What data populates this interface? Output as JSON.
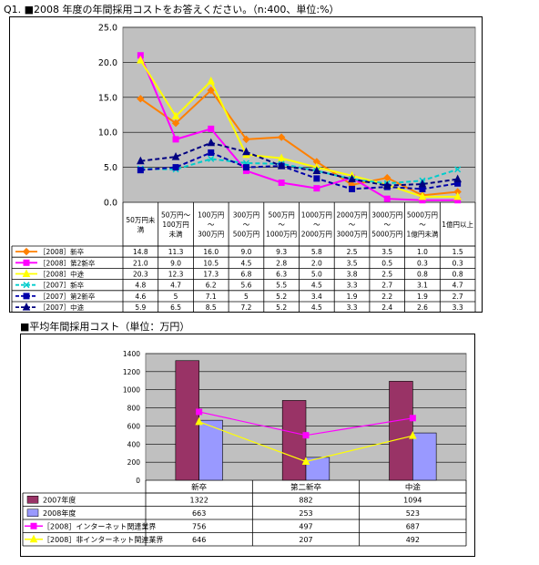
{
  "title1": "Q1. ■2008 年度の年間採用コストをお答えください。（n:400、単位:%）",
  "title2": "■平均年間採用コスト（単位：万円）",
  "chart_data": [
    {
      "type": "line",
      "ylim": [
        0,
        25
      ],
      "yticks": [
        "25.0",
        "20.0",
        "15.0",
        "10.0",
        "5.0",
        "0.0"
      ],
      "categories": [
        [
          "50万円未",
          "満"
        ],
        [
          "50万円～",
          "100万円",
          "未満"
        ],
        [
          "100万円",
          "～",
          "300万円"
        ],
        [
          "300万円",
          "～",
          "500万円"
        ],
        [
          "500万円",
          "～",
          "1000万円"
        ],
        [
          "1000万円",
          "～",
          "2000万円"
        ],
        [
          "2000万円",
          "～",
          "3000万円"
        ],
        [
          "3000万円",
          "～",
          "5000万円"
        ],
        [
          "5000万円",
          "～",
          "1億円未満"
        ],
        [
          "1億円以上"
        ]
      ],
      "series": [
        {
          "name": "［2008］新卒",
          "color": "#ff8000",
          "dash": false,
          "marker": "diamond",
          "labels": [
            "14.8",
            "11.3",
            "16.0",
            "9.0",
            "9.3",
            "5.8",
            "2.5",
            "3.5",
            "1.0",
            "1.5"
          ],
          "values": [
            14.8,
            11.3,
            16.0,
            9.0,
            9.3,
            5.8,
            2.5,
            3.5,
            1.0,
            1.5
          ]
        },
        {
          "name": "［2008］第2新卒",
          "color": "#ff00ff",
          "dash": false,
          "marker": "square",
          "labels": [
            "21.0",
            "9.0",
            "10.5",
            "4.5",
            "2.8",
            "2.0",
            "3.5",
            "0.5",
            "0.3",
            "0.3"
          ],
          "values": [
            21.0,
            9.0,
            10.5,
            4.5,
            2.8,
            2.0,
            3.5,
            0.5,
            0.3,
            0.3
          ]
        },
        {
          "name": "［2008］中途",
          "color": "#ffff00",
          "dash": false,
          "marker": "triangle",
          "labels": [
            "20.3",
            "12.3",
            "17.3",
            "6.8",
            "6.3",
            "5.0",
            "3.8",
            "2.5",
            "0.8",
            "0.8"
          ],
          "values": [
            20.3,
            12.3,
            17.3,
            6.8,
            6.3,
            5.0,
            3.8,
            2.5,
            0.8,
            0.8
          ]
        },
        {
          "name": "［2007］新卒",
          "color": "#00cccc",
          "dash": true,
          "marker": "x",
          "labels": [
            "4.8",
            "4.7",
            "6.2",
            "5.6",
            "5.5",
            "4.5",
            "3.3",
            "2.7",
            "3.1",
            "4.7"
          ],
          "values": [
            4.8,
            4.7,
            6.2,
            5.6,
            5.5,
            4.5,
            3.3,
            2.7,
            3.1,
            4.7
          ]
        },
        {
          "name": "［2007］第2新卒",
          "color": "#0000aa",
          "dash": true,
          "marker": "square",
          "labels": [
            "4.6",
            "5",
            "7.1",
            "5",
            "5.2",
            "3.4",
            "1.9",
            "2.2",
            "1.9",
            "2.7"
          ],
          "values": [
            4.6,
            5,
            7.1,
            5,
            5.2,
            3.4,
            1.9,
            2.2,
            1.9,
            2.7
          ]
        },
        {
          "name": "［2007］中途",
          "color": "#000080",
          "dash": true,
          "marker": "triangle",
          "labels": [
            "5.9",
            "6.5",
            "8.5",
            "7.2",
            "5.2",
            "4.5",
            "3.3",
            "2.4",
            "2.6",
            "3.3"
          ],
          "values": [
            5.9,
            6.5,
            8.5,
            7.2,
            5.2,
            4.5,
            3.3,
            2.4,
            2.6,
            3.3
          ]
        }
      ]
    },
    {
      "type": "bar",
      "ylim": [
        0,
        1400
      ],
      "yticks": [
        "1400",
        "1200",
        "1000",
        "800",
        "600",
        "400",
        "200",
        "0"
      ],
      "categories": [
        "新卒",
        "第二新卒",
        "中途"
      ],
      "series": [
        {
          "name": "2007年度",
          "kind": "bar",
          "color": "#993366",
          "marker": "box",
          "labels": [
            "1322",
            "882",
            "1094"
          ],
          "values": [
            1322,
            882,
            1094
          ]
        },
        {
          "name": "2008年度",
          "kind": "bar",
          "color": "#9999ff",
          "marker": "box",
          "labels": [
            "663",
            "253",
            "523"
          ],
          "values": [
            663,
            253,
            523
          ]
        },
        {
          "name": "［2008］インターネット関連業界",
          "kind": "line",
          "color": "#ff00ff",
          "marker": "square",
          "labels": [
            "756",
            "497",
            "687"
          ],
          "values": [
            756,
            497,
            687
          ]
        },
        {
          "name": "［2008］非インターネット関連業界",
          "kind": "line",
          "color": "#ffff00",
          "marker": "triangle",
          "labels": [
            "646",
            "207",
            "492"
          ],
          "values": [
            646,
            207,
            492
          ]
        }
      ]
    }
  ]
}
